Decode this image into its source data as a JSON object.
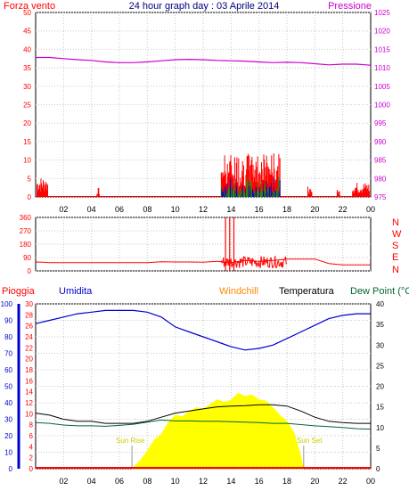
{
  "header": {
    "left_label": "Forza vento",
    "title": "24 hour graph day : 03 Aprile 2014",
    "right_label": "Pressione"
  },
  "wind_dir_letters": [
    "N",
    "W",
    "S",
    "E",
    "N"
  ],
  "lower_labels": {
    "rain": "Pioggia",
    "humidity": "Umidita",
    "windchill": "Windchill",
    "temperature": "Temperatura",
    "dewpoint": "Dew Point (°C"
  },
  "sun_labels": {
    "rise": "Sun Rise",
    "set": "Sun Set"
  },
  "x_tick_labels": [
    "02",
    "04",
    "06",
    "08",
    "10",
    "12",
    "14",
    "16",
    "18",
    "20",
    "22",
    "00"
  ],
  "colors": {
    "wind": "#ff0000",
    "gust": "#00aa00",
    "avg": "#0000cc",
    "pressure": "#cc00cc",
    "rain": "#ff0000",
    "humidity": "#0000cc",
    "temperature": "#000000",
    "dewpoint": "#006633",
    "windchill": "#ff8800",
    "solar": "#ffff00",
    "grid": "#c8c8c8",
    "title": "#000080",
    "axis_right_lower": "#000000",
    "sun_label": "#cccc00"
  },
  "chart_data": [
    {
      "type": "line",
      "title": "24 hour graph day : 03 Aprile 2014",
      "series_labels": [
        "Forza vento",
        "Pressione"
      ],
      "x_range_hours": [
        0,
        24
      ],
      "y_left": {
        "label": "Forza vento",
        "ticks": [
          0,
          5,
          10,
          15,
          20,
          25,
          30,
          35,
          40,
          45,
          50
        ],
        "range": [
          0,
          50
        ]
      },
      "y_right": {
        "label": "Pressione",
        "ticks": [
          975,
          980,
          985,
          990,
          995,
          1000,
          1005,
          1010,
          1015,
          1020,
          1025
        ],
        "range": [
          975,
          1025
        ]
      },
      "pressure": {
        "x": [
          0,
          1,
          2,
          3,
          4,
          5,
          6,
          7,
          8,
          9,
          10,
          11,
          12,
          13,
          14,
          15,
          16,
          17,
          18,
          19,
          20,
          21,
          22,
          23,
          24
        ],
        "y": [
          1012.8,
          1012.8,
          1012.5,
          1012.2,
          1012.0,
          1011.6,
          1011.4,
          1011.4,
          1011.6,
          1011.9,
          1012.2,
          1012.3,
          1012.2,
          1012.0,
          1011.9,
          1011.8,
          1011.6,
          1011.4,
          1011.5,
          1011.4,
          1011.1,
          1010.8,
          1011.0,
          1011.0,
          1010.7
        ]
      },
      "wind_bursts": [
        {
          "start": 0.1,
          "end": 0.9,
          "max": 5.5
        },
        {
          "start": 4.4,
          "end": 4.6,
          "max": 2.5
        },
        {
          "start": 13.3,
          "end": 17.5,
          "max": 12
        },
        {
          "start": 19.5,
          "end": 19.8,
          "max": 3
        },
        {
          "start": 21.6,
          "end": 21.8,
          "max": 2
        },
        {
          "start": 22.7,
          "end": 23.9,
          "max": 4
        }
      ]
    },
    {
      "type": "line",
      "title": "",
      "y_left": {
        "ticks": [
          0,
          90,
          180,
          270,
          360
        ],
        "range": [
          0,
          360
        ]
      },
      "x_range_hours": [
        0,
        24
      ],
      "direction": {
        "x": [
          0,
          0.5,
          1,
          2,
          3,
          4,
          5,
          6,
          7,
          8,
          9,
          10,
          11,
          12,
          13,
          14,
          15,
          16,
          17,
          18,
          19,
          20,
          21,
          22,
          23,
          24
        ],
        "y": [
          60,
          58,
          55,
          55,
          55,
          55,
          55,
          55,
          55,
          55,
          62,
          60,
          60,
          58,
          65,
          55,
          70,
          65,
          70,
          80,
          80,
          80,
          50,
          40,
          40,
          40
        ]
      },
      "spikes": [
        {
          "x": 13.6,
          "y": 360
        },
        {
          "x": 13.9,
          "y": 360
        },
        {
          "x": 14.2,
          "y": 360
        }
      ]
    },
    {
      "type": "area",
      "title": "",
      "series_labels": [
        "Pioggia",
        "Umidita",
        "Windchill",
        "Temperatura",
        "Dew Point (°C"
      ],
      "y_left_humidity": {
        "label": "Umidita",
        "ticks": [
          0,
          10,
          20,
          30,
          40,
          50,
          60,
          70,
          80,
          90,
          100
        ],
        "range": [
          0,
          100
        ]
      },
      "y_left_rain": {
        "label": "Pioggia",
        "ticks": [
          0,
          2,
          4,
          6,
          8,
          10,
          12,
          14,
          16,
          18,
          20,
          22,
          24,
          26,
          28,
          30
        ],
        "range": [
          0,
          30
        ]
      },
      "y_right_temp": {
        "ticks": [
          0,
          5,
          10,
          15,
          20,
          25,
          30,
          35,
          40
        ],
        "range": [
          0,
          40
        ]
      },
      "x_range_hours": [
        0,
        24
      ],
      "humidity": {
        "x": [
          0,
          1,
          2,
          3,
          4,
          5,
          6,
          7,
          8,
          9,
          10,
          11,
          12,
          13,
          14,
          15,
          16,
          17,
          18,
          19,
          20,
          21,
          22,
          23,
          24
        ],
        "y": [
          88,
          90,
          92,
          94,
          95,
          96,
          96,
          96,
          95,
          92,
          86,
          83,
          80,
          77,
          74,
          72,
          73,
          75,
          79,
          83,
          87,
          91,
          93,
          94,
          94
        ]
      },
      "temperature": {
        "x": [
          0,
          1,
          2,
          3,
          4,
          5,
          6,
          7,
          8,
          9,
          10,
          11,
          12,
          13,
          14,
          15,
          16,
          17,
          18,
          19,
          20,
          21,
          22,
          23,
          24
        ],
        "y": [
          13.5,
          13.0,
          12.0,
          11.5,
          11.5,
          11.0,
          11.0,
          11.0,
          11.5,
          12.5,
          13.5,
          14.0,
          14.5,
          15.0,
          15.2,
          15.3,
          15.5,
          15.5,
          15.2,
          14.0,
          12.5,
          11.5,
          11.2,
          11.0,
          11.0
        ]
      },
      "dewpoint": {
        "x": [
          0,
          1,
          2,
          3,
          4,
          5,
          6,
          7,
          8,
          9,
          10,
          11,
          12,
          13,
          14,
          15,
          16,
          17,
          18,
          19,
          20,
          21,
          22,
          23,
          24
        ],
        "y": [
          11.2,
          11.0,
          10.6,
          10.4,
          10.4,
          10.3,
          10.5,
          10.8,
          11.3,
          11.8,
          11.6,
          11.6,
          11.5,
          11.5,
          11.4,
          11.3,
          11.2,
          11.0,
          11.0,
          10.7,
          10.4,
          10.2,
          10.0,
          9.7,
          9.6
        ]
      },
      "solar": {
        "x": [
          6.9,
          7.5,
          8,
          8.5,
          9,
          9.5,
          10,
          10.5,
          11,
          11.5,
          12,
          12.5,
          13,
          13.5,
          14,
          14.5,
          15,
          15.5,
          16,
          16.5,
          17,
          17.5,
          18,
          18.5,
          19,
          19.2
        ],
        "y": [
          0,
          1,
          3,
          5,
          7,
          9,
          10,
          9.5,
          10,
          11,
          10.5,
          11,
          12,
          12.5,
          13,
          13.5,
          13.5,
          13,
          12.8,
          12.5,
          11.5,
          10,
          8,
          6,
          3,
          0
        ]
      },
      "sun_rise_hour": 6.9,
      "sun_set_hour": 19.2
    }
  ]
}
